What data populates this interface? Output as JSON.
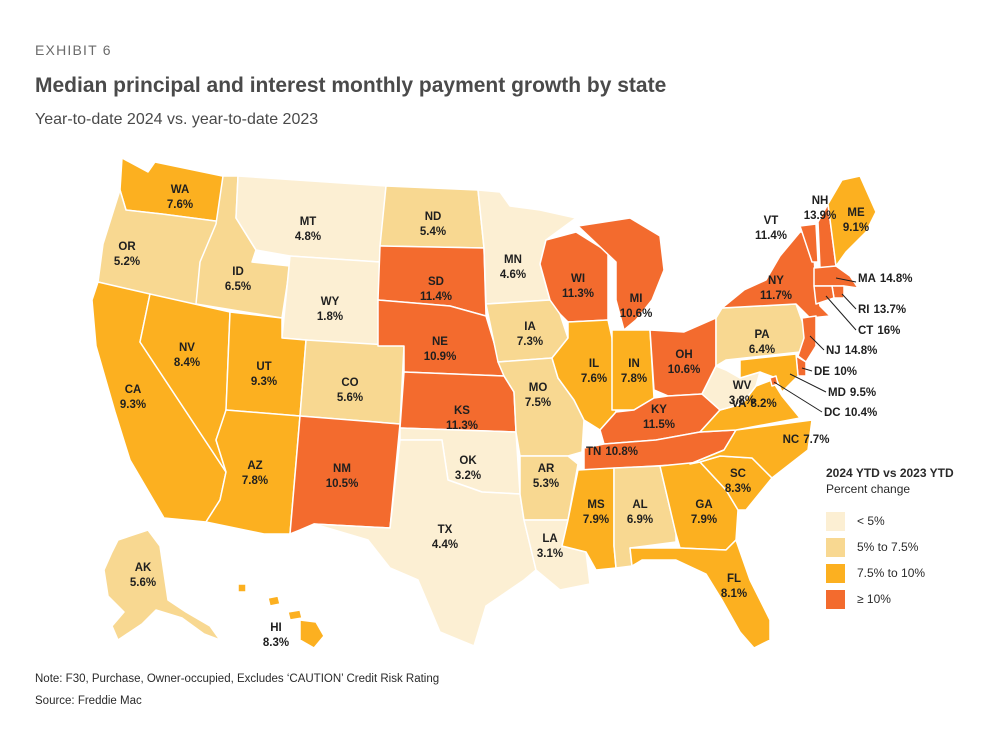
{
  "header": {
    "exhibit": "EXHIBIT 6",
    "title": "Median principal and interest monthly payment growth by state",
    "subtitle": "Year-to-date 2024 vs. year-to-date 2023"
  },
  "colors": {
    "lt5": "#fcefd3",
    "5to75": "#f8d891",
    "75to10": "#fcb020",
    "ge10": "#f36b2e"
  },
  "legend": {
    "title": "2024 YTD vs 2023 YTD",
    "subtitle": "Percent change",
    "items": [
      {
        "label": "< 5%",
        "color": "#fcefd3"
      },
      {
        "label": "5% to 7.5%",
        "color": "#f8d891"
      },
      {
        "label": "7.5% to 10%",
        "color": "#fcb020"
      },
      {
        "label": "≥ 10%",
        "color": "#f36b2e"
      }
    ]
  },
  "chart_data": {
    "type": "choropleth",
    "title": "Median principal and interest monthly payment growth by state",
    "subtitle": "Year-to-date 2024 vs. year-to-date 2023",
    "unit": "percent change",
    "states": [
      {
        "code": "WA",
        "value": "7.6%"
      },
      {
        "code": "OR",
        "value": "5.2%"
      },
      {
        "code": "CA",
        "value": "9.3%"
      },
      {
        "code": "NV",
        "value": "8.4%"
      },
      {
        "code": "ID",
        "value": "6.5%"
      },
      {
        "code": "MT",
        "value": "4.8%"
      },
      {
        "code": "WY",
        "value": "1.8%"
      },
      {
        "code": "UT",
        "value": "9.3%"
      },
      {
        "code": "AZ",
        "value": "7.8%"
      },
      {
        "code": "CO",
        "value": "5.6%"
      },
      {
        "code": "NM",
        "value": "10.5%"
      },
      {
        "code": "ND",
        "value": "5.4%"
      },
      {
        "code": "SD",
        "value": "11.4%"
      },
      {
        "code": "NE",
        "value": "10.9%"
      },
      {
        "code": "KS",
        "value": "11.3%"
      },
      {
        "code": "OK",
        "value": "3.2%"
      },
      {
        "code": "TX",
        "value": "4.4%"
      },
      {
        "code": "MN",
        "value": "4.6%"
      },
      {
        "code": "IA",
        "value": "7.3%"
      },
      {
        "code": "MO",
        "value": "7.5%"
      },
      {
        "code": "AR",
        "value": "5.3%"
      },
      {
        "code": "LA",
        "value": "3.1%"
      },
      {
        "code": "WI",
        "value": "11.3%"
      },
      {
        "code": "IL",
        "value": "7.6%"
      },
      {
        "code": "MI",
        "value": "10.6%"
      },
      {
        "code": "IN",
        "value": "7.8%"
      },
      {
        "code": "OH",
        "value": "10.6%"
      },
      {
        "code": "KY",
        "value": "11.5%"
      },
      {
        "code": "TN",
        "value": "10.8%"
      },
      {
        "code": "MS",
        "value": "7.9%"
      },
      {
        "code": "AL",
        "value": "6.9%"
      },
      {
        "code": "GA",
        "value": "7.9%"
      },
      {
        "code": "FL",
        "value": "8.1%"
      },
      {
        "code": "SC",
        "value": "8.3%"
      },
      {
        "code": "NC",
        "value": "7.7%"
      },
      {
        "code": "VA",
        "value": "8.2%"
      },
      {
        "code": "WV",
        "value": "3.8%"
      },
      {
        "code": "PA",
        "value": "6.4%"
      },
      {
        "code": "NY",
        "value": "11.7%"
      },
      {
        "code": "VT",
        "value": "11.4%"
      },
      {
        "code": "NH",
        "value": "13.9%"
      },
      {
        "code": "ME",
        "value": "9.1%"
      },
      {
        "code": "MA",
        "value": "14.8%"
      },
      {
        "code": "RI",
        "value": "13.7%"
      },
      {
        "code": "CT",
        "value": "16%"
      },
      {
        "code": "NJ",
        "value": "14.8%"
      },
      {
        "code": "DE",
        "value": "10%"
      },
      {
        "code": "MD",
        "value": "9.5%"
      },
      {
        "code": "DC",
        "value": "10.4%"
      },
      {
        "code": "AK",
        "value": "5.6%"
      },
      {
        "code": "HI",
        "value": "8.3%"
      }
    ]
  },
  "footer": {
    "note": "Note: F30, Purchase, Owner-occupied, Excludes ‘CAUTION’ Credit Risk Rating",
    "source": "Source: Freddie Mac"
  }
}
